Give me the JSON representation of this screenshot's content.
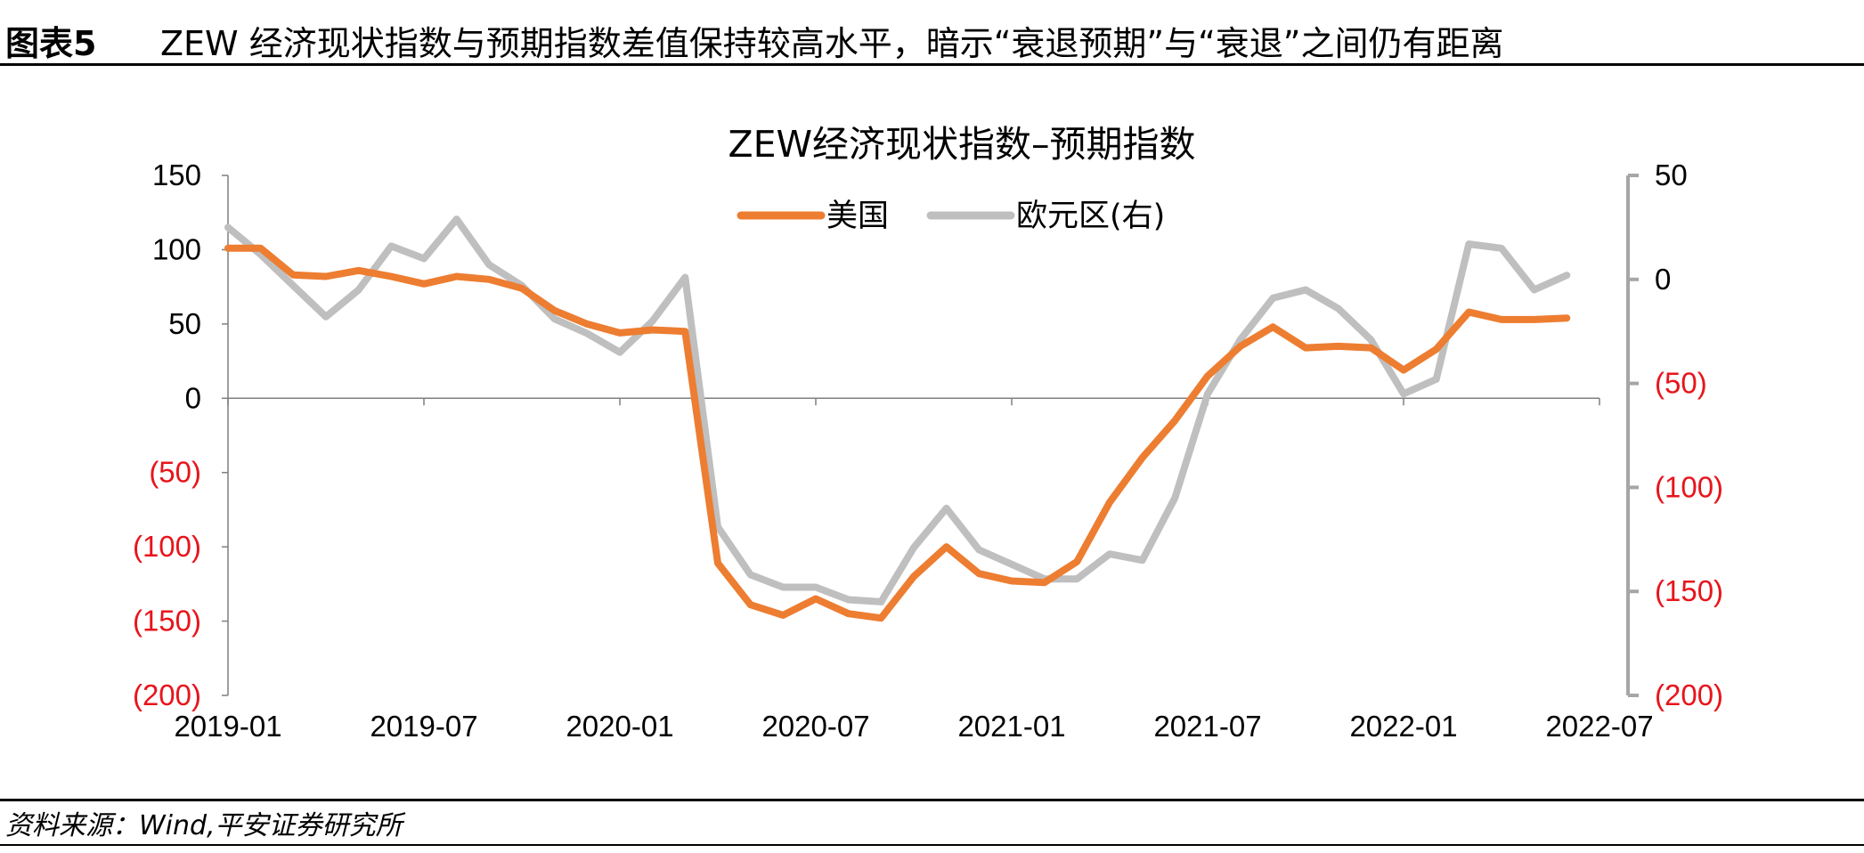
{
  "header": {
    "figure_label": "图表5",
    "figure_title": "ZEW 经济现状指数与预期指数差值保持较高水平，暗示“衰退预期”与“衰退”之间仍有距离"
  },
  "footer": {
    "source": "资料来源：Wind,平安证券研究所"
  },
  "colors": {
    "us": "#ed7d31",
    "eurozone": "#bfbfbf",
    "negative_label": "#e8141b"
  },
  "chart_data": {
    "type": "line",
    "title": "ZEW经济现状指数–预期指数",
    "x_ticks": [
      "2019-01",
      "2019-07",
      "2020-01",
      "2020-07",
      "2021-01",
      "2021-07",
      "2022-01",
      "2022-07"
    ],
    "x_start": "2019-01",
    "x_end": "2022-07",
    "y_left": {
      "ylim": [
        -200,
        150
      ],
      "ticks": [
        150,
        100,
        50,
        0,
        -50,
        -100,
        -150,
        -200
      ],
      "tick_labels": [
        "150",
        "100",
        "50",
        "0",
        "(50)",
        "(100)",
        "(150)",
        "(200)"
      ]
    },
    "y_right": {
      "ylim": [
        -200,
        50
      ],
      "ticks": [
        50,
        0,
        -50,
        -100,
        -150,
        -200
      ],
      "tick_labels": [
        "50",
        "0",
        "(50)",
        "(100)",
        "(150)",
        "(200)"
      ]
    },
    "legend": {
      "placement": "top-center"
    },
    "series": [
      {
        "name": "美国",
        "axis": "left",
        "x": [
          "2019-01",
          "2019-02",
          "2019-03",
          "2019-04",
          "2019-05",
          "2019-06",
          "2019-07",
          "2019-08",
          "2019-09",
          "2019-10",
          "2019-11",
          "2019-12",
          "2020-01",
          "2020-02",
          "2020-03",
          "2020-04",
          "2020-05",
          "2020-06",
          "2020-07",
          "2020-08",
          "2020-09",
          "2020-10",
          "2020-11",
          "2020-12",
          "2021-01",
          "2021-02",
          "2021-03",
          "2021-04",
          "2021-05",
          "2021-06",
          "2021-07",
          "2021-08",
          "2021-09",
          "2021-10",
          "2021-11",
          "2021-12",
          "2022-01",
          "2022-02",
          "2022-03",
          "2022-04",
          "2022-05",
          "2022-06"
        ],
        "values": [
          101,
          101,
          83,
          82,
          86,
          82,
          77,
          82,
          80,
          74,
          59,
          50,
          44,
          46,
          45,
          -111,
          -139,
          -146,
          -135,
          -145,
          -148,
          -120,
          -100,
          -118,
          -123,
          -124,
          -110,
          -70,
          -40,
          -15,
          15,
          35,
          48,
          34,
          35,
          34,
          19,
          33,
          58,
          53,
          53,
          54
        ]
      },
      {
        "name": "欧元区(右)",
        "axis": "right",
        "x": [
          "2019-01",
          "2019-02",
          "2019-03",
          "2019-04",
          "2019-05",
          "2019-06",
          "2019-07",
          "2019-08",
          "2019-09",
          "2019-10",
          "2019-11",
          "2019-12",
          "2020-01",
          "2020-02",
          "2020-03",
          "2020-04",
          "2020-05",
          "2020-06",
          "2020-07",
          "2020-08",
          "2020-09",
          "2020-10",
          "2020-11",
          "2020-12",
          "2021-01",
          "2021-02",
          "2021-03",
          "2021-04",
          "2021-05",
          "2021-06",
          "2021-07",
          "2021-08",
          "2021-09",
          "2021-10",
          "2021-11",
          "2021-12",
          "2022-01",
          "2022-02",
          "2022-03",
          "2022-04",
          "2022-05",
          "2022-06"
        ],
        "values": [
          25,
          12,
          -3,
          -18,
          -5,
          16,
          10,
          29,
          7,
          -3,
          -19,
          -26,
          -35,
          -20,
          1,
          -119,
          -142,
          -148,
          -148,
          -154,
          -155,
          -129,
          -110,
          -130,
          -137,
          -144,
          -144,
          -132,
          -135,
          -105,
          -55,
          -29,
          -9,
          -5,
          -14,
          -29,
          -55,
          -48,
          17,
          15,
          -5,
          2
        ]
      }
    ]
  }
}
